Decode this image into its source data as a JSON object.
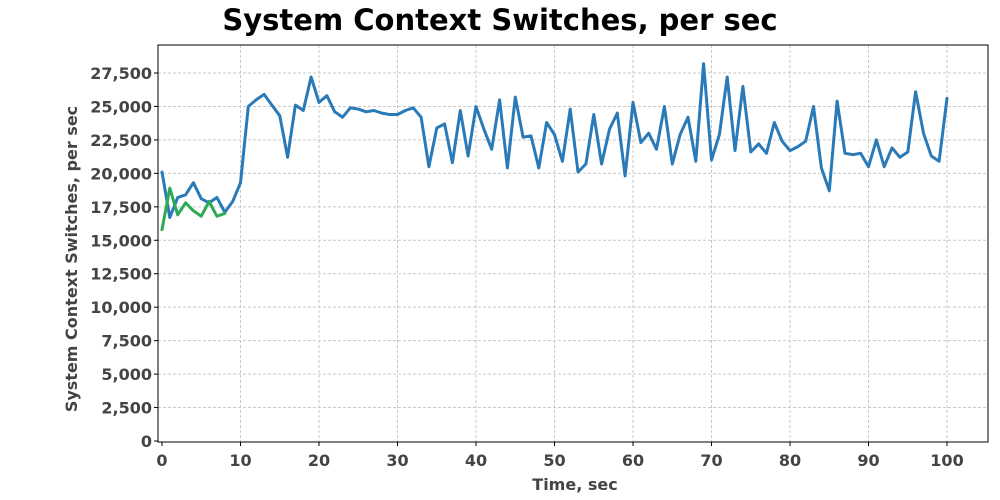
{
  "chart_data": {
    "type": "line",
    "title": "System Context Switches, per sec",
    "xlabel": "Time, sec",
    "ylabel": "System Context Switches, per sec",
    "xlim": [
      0,
      105
    ],
    "ylim": [
      0,
      29500
    ],
    "xticks": [
      {
        "value": 0,
        "label": "0"
      },
      {
        "value": 10,
        "label": "10"
      },
      {
        "value": 20,
        "label": "20"
      },
      {
        "value": 30,
        "label": "30"
      },
      {
        "value": 40,
        "label": "40"
      },
      {
        "value": 50,
        "label": "50"
      },
      {
        "value": 60,
        "label": "60"
      },
      {
        "value": 70,
        "label": "70"
      },
      {
        "value": 80,
        "label": "80"
      },
      {
        "value": 90,
        "label": "90"
      },
      {
        "value": 100,
        "label": "100"
      }
    ],
    "yticks": [
      {
        "value": 0,
        "label": "0"
      },
      {
        "value": 2500,
        "label": "2,500"
      },
      {
        "value": 5000,
        "label": "5,000"
      },
      {
        "value": 7500,
        "label": "7,500"
      },
      {
        "value": 10000,
        "label": "10,000"
      },
      {
        "value": 12500,
        "label": "12,500"
      },
      {
        "value": 15000,
        "label": "15,000"
      },
      {
        "value": 17500,
        "label": "17,500"
      },
      {
        "value": 20000,
        "label": "20,000"
      },
      {
        "value": 22500,
        "label": "22,500"
      },
      {
        "value": 25000,
        "label": "25,000"
      },
      {
        "value": 27500,
        "label": "27,500"
      }
    ],
    "grid": true,
    "legend": "none",
    "series": [
      {
        "color": "#2a7ab8",
        "x": [
          0,
          1,
          2,
          3,
          4,
          5,
          6,
          7,
          8,
          9,
          10,
          11,
          12,
          13,
          14,
          15,
          16,
          17,
          18,
          19,
          20,
          21,
          22,
          23,
          24,
          25,
          26,
          27,
          28,
          29,
          30,
          31,
          32,
          33,
          34,
          35,
          36,
          37,
          38,
          39,
          40,
          41,
          42,
          43,
          44,
          45,
          46,
          47,
          48,
          49,
          50,
          51,
          52,
          53,
          54,
          55,
          56,
          57,
          58,
          59,
          60,
          61,
          62,
          63,
          64,
          65,
          66,
          67,
          68,
          69,
          70,
          71,
          72,
          73,
          74,
          75,
          76,
          77,
          78,
          79,
          80,
          81,
          82,
          83,
          84,
          85,
          86,
          87,
          88,
          89,
          90,
          91,
          92,
          93,
          94,
          95,
          96,
          97,
          98,
          99,
          100
        ],
        "y": [
          20100,
          16700,
          18200,
          18400,
          19300,
          18100,
          17800,
          18200,
          17100,
          17900,
          19300,
          25000,
          25500,
          25900,
          25100,
          24300,
          21200,
          25100,
          24700,
          27200,
          25300,
          25800,
          24600,
          24200,
          24900,
          24800,
          24600,
          24700,
          24500,
          24400,
          24400,
          24700,
          24900,
          24200,
          20500,
          23400,
          23700,
          20800,
          24700,
          21300,
          25000,
          23300,
          21800,
          25500,
          20400,
          25700,
          22700,
          22800,
          20400,
          23800,
          22900,
          20900,
          24800,
          20100,
          20700,
          24400,
          20700,
          23300,
          24500,
          19800,
          25300,
          22300,
          23000,
          21800,
          25000,
          20700,
          22900,
          24200,
          20900,
          28200,
          21000,
          22900,
          27200,
          21700,
          26500,
          21600,
          22200,
          21500,
          23800,
          22400,
          21700,
          22000,
          22400,
          25000,
          20400,
          18700,
          25400,
          21500,
          21400,
          21500,
          20500,
          22500,
          20500,
          21900,
          21200,
          21600,
          26100,
          23000,
          21300,
          20900,
          25600
        ]
      },
      {
        "color": "#2eaa55",
        "x": [
          0,
          1,
          2,
          3,
          4,
          5,
          6,
          7,
          8
        ],
        "y": [
          15800,
          18900,
          16900,
          17800,
          17200,
          16800,
          17900,
          16800,
          17000
        ]
      }
    ]
  }
}
